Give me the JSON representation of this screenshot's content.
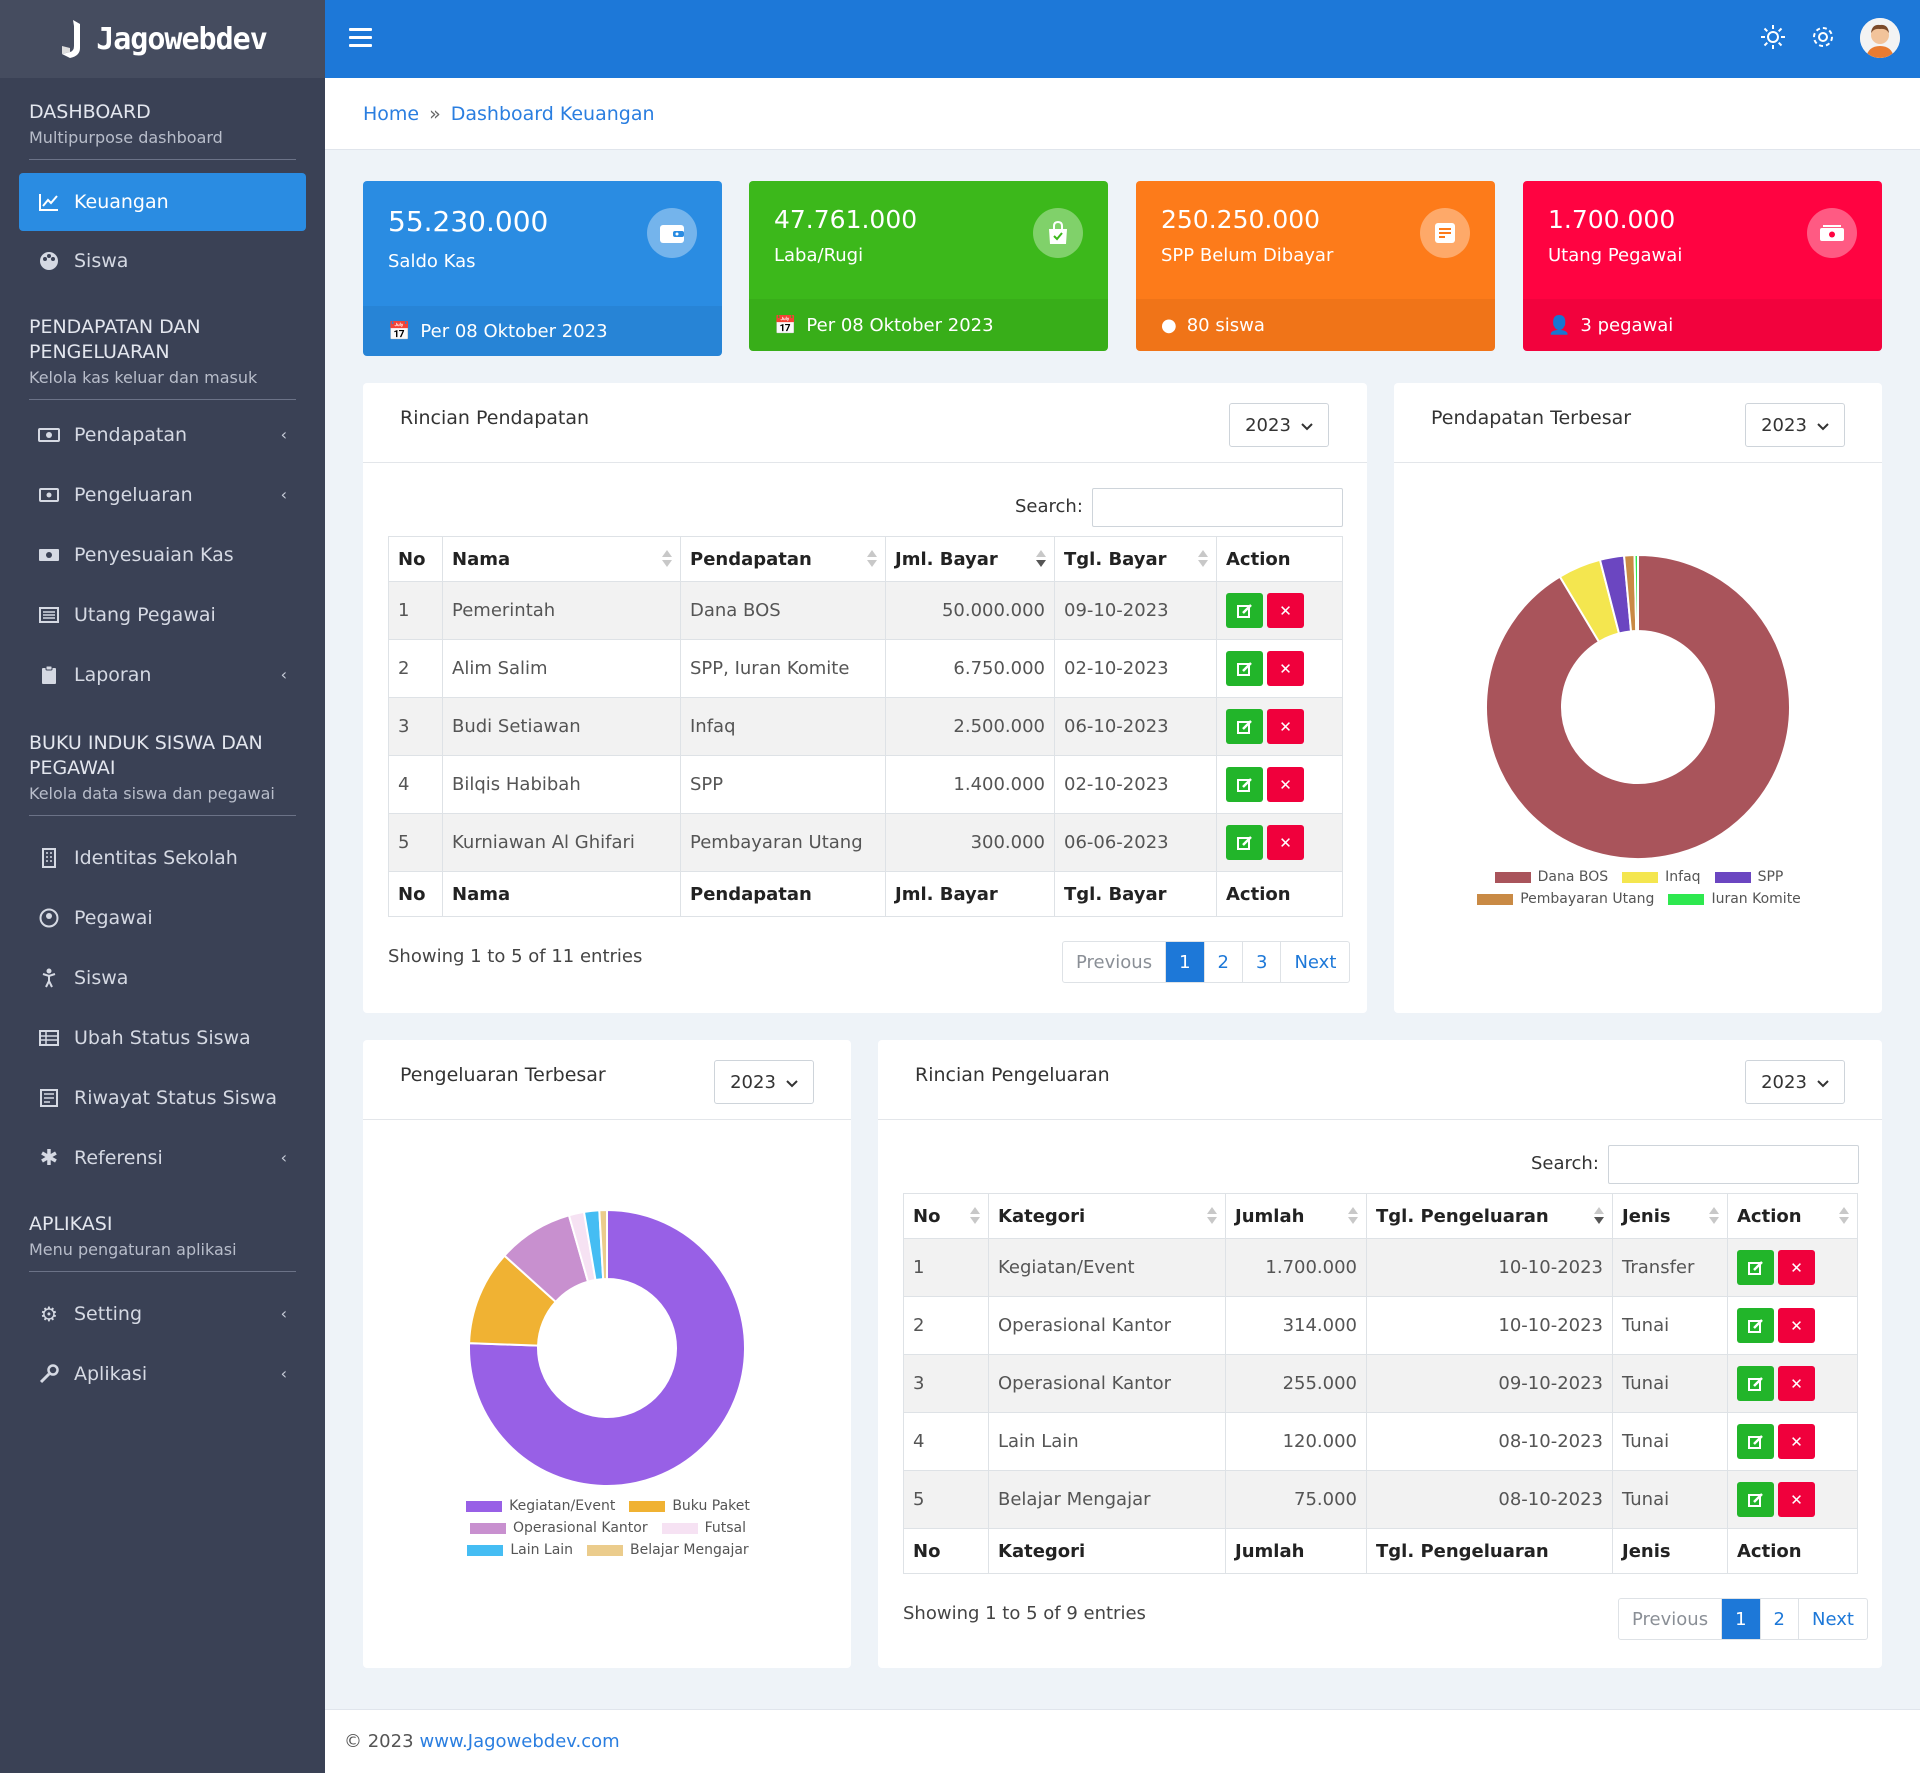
{
  "brand": {
    "name": "Jagowebdev"
  },
  "sidebar": {
    "sections": [
      {
        "title": "DASHBOARD",
        "subtitle": "Multipurpose dashboard"
      },
      {
        "title": "PENDAPATAN DAN PENGELUARAN",
        "subtitle": "Kelola kas keluar dan masuk"
      },
      {
        "title": "BUKU INDUK SISWA DAN PEGAWAI",
        "subtitle": "Kelola data siswa dan pegawai"
      },
      {
        "title": "APLIKASI",
        "subtitle": "Menu pengaturan aplikasi"
      }
    ],
    "items": {
      "keuangan": "Keuangan",
      "siswa_dash": "Siswa",
      "pendapatan": "Pendapatan",
      "pengeluaran": "Pengeluaran",
      "penyesuaian": "Penyesuaian Kas",
      "utang": "Utang Pegawai",
      "laporan": "Laporan",
      "identitas": "Identitas Sekolah",
      "pegawai": "Pegawai",
      "siswa": "Siswa",
      "ubah_status": "Ubah Status Siswa",
      "riwayat": "Riwayat Status Siswa",
      "referensi": "Referensi",
      "setting": "Setting",
      "aplikasi": "Aplikasi"
    }
  },
  "breadcrumb": {
    "home": "Home",
    "separator": "»",
    "current": "Dashboard Keuangan"
  },
  "stats": [
    {
      "value": "55.230.000",
      "label": "Saldo Kas",
      "footer": "Per 08 Oktober 2023",
      "color": "#2a8ce2"
    },
    {
      "value": "47.761.000",
      "label": "Laba/Rugi",
      "footer": "Per 08 Oktober 2023",
      "color": "#3cb81b"
    },
    {
      "value": "250.250.000",
      "label": "SPP Belum Dibayar",
      "footer": "80 siswa",
      "color": "#fd7b1a"
    },
    {
      "value": "1.700.000",
      "label": "Utang Pegawai",
      "footer": "3 pegawai",
      "color": "#ff0341"
    }
  ],
  "pendapatan_table": {
    "title": "Rincian Pendapatan",
    "year": "2023",
    "search_label": "Search:",
    "headers": [
      "No",
      "Nama",
      "Pendapatan",
      "Jml. Bayar",
      "Tgl. Bayar",
      "Action"
    ],
    "rows": [
      [
        "1",
        "Pemerintah",
        "Dana BOS",
        "50.000.000",
        "09-10-2023"
      ],
      [
        "2",
        "Alim Salim",
        "SPP, Iuran Komite",
        "6.750.000",
        "02-10-2023"
      ],
      [
        "3",
        "Budi Setiawan",
        "Infaq",
        "2.500.000",
        "06-10-2023"
      ],
      [
        "4",
        "Bilqis Habibah",
        "SPP",
        "1.400.000",
        "02-10-2023"
      ],
      [
        "5",
        "Kurniawan Al Ghifari",
        "Pembayaran Utang",
        "300.000",
        "06-06-2023"
      ]
    ],
    "info": "Showing 1 to 5 of 11 entries",
    "pager": {
      "prev": "Previous",
      "pages": [
        "1",
        "2",
        "3"
      ],
      "next": "Next"
    }
  },
  "pengeluaran_table": {
    "title": "Rincian Pengeluaran",
    "year": "2023",
    "search_label": "Search:",
    "headers": [
      "No",
      "Kategori",
      "Jumlah",
      "Tgl. Pengeluaran",
      "Jenis",
      "Action"
    ],
    "rows": [
      [
        "1",
        "Kegiatan/Event",
        "1.700.000",
        "10-10-2023",
        "Transfer"
      ],
      [
        "2",
        "Operasional Kantor",
        "314.000",
        "10-10-2023",
        "Tunai"
      ],
      [
        "3",
        "Operasional Kantor",
        "255.000",
        "09-10-2023",
        "Tunai"
      ],
      [
        "4",
        "Lain Lain",
        "120.000",
        "08-10-2023",
        "Tunai"
      ],
      [
        "5",
        "Belajar Mengajar",
        "75.000",
        "08-10-2023",
        "Tunai"
      ]
    ],
    "info": "Showing 1 to 5 of 9 entries",
    "pager": {
      "prev": "Previous",
      "pages": [
        "1",
        "2"
      ],
      "next": "Next"
    }
  },
  "pendapatan_chart": {
    "title": "Pendapatan Terbesar",
    "year": "2023"
  },
  "pengeluaran_chart": {
    "title": "Pengeluaran Terbesar",
    "year": "2023"
  },
  "chart_data": [
    {
      "type": "pie",
      "subtype": "doughnut",
      "labels": [
        "Dana BOS",
        "Infaq",
        "SPP",
        "Pembayaran Utang",
        "Iuran Komite"
      ],
      "values": [
        50000000,
        2500000,
        1400000,
        600000,
        200000
      ],
      "colors": [
        "#a9545b",
        "#f4e64f",
        "#6b46c1",
        "#c98a45",
        "#2ee84f"
      ],
      "legend": "bottom"
    },
    {
      "type": "pie",
      "subtype": "doughnut",
      "labels": [
        "Kegiatan/Event",
        "Buku Paket",
        "Operasional Kantor",
        "Futsal",
        "Lain Lain",
        "Belajar Mengajar"
      ],
      "values": [
        1700000,
        250000,
        200000,
        40000,
        40000,
        20000
      ],
      "colors": [
        "#9860e6",
        "#f0b233",
        "#c890cf",
        "#f6e2f3",
        "#45bdf3",
        "#ebcc8c"
      ],
      "legend": "bottom"
    }
  ],
  "footer": {
    "copyright": "© 2023",
    "link": "www.Jagowebdev.com"
  }
}
